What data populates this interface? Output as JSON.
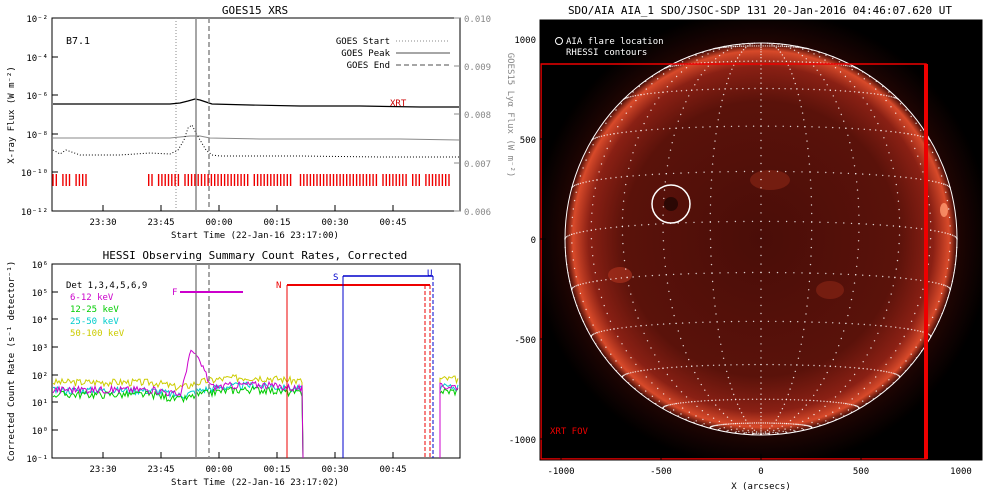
{
  "goes": {
    "title": "GOES15 XRS",
    "class_label": "B7.1",
    "ylabel_left": "X-ray Flux (W m⁻²)",
    "ylabel_right": "GOES15 Lyα Flux (W m⁻²)",
    "xlabel": "Start Time (22-Jan-16 23:17:00)",
    "xrt_label": "XRT",
    "legend": [
      "GOES Start",
      "GOES Peak",
      "GOES End"
    ],
    "y_ticks": [
      "10⁻²",
      "10⁻⁴",
      "10⁻⁶",
      "10⁻⁸",
      "10⁻¹⁰",
      "10⁻¹²"
    ],
    "right_ticks": [
      "0.010",
      "0.009",
      "0.008",
      "0.007",
      "0.006"
    ],
    "x_ticks": [
      "23:30",
      "23:45",
      "00:00",
      "00:15",
      "00:30",
      "00:45"
    ]
  },
  "hessi": {
    "title": "HESSI Observing Summary Count Rates, Corrected",
    "xlabel": "Start Time (22-Jan-16 23:17:02)",
    "ylabel": "Corrected Count Rate (s⁻¹ detector⁻¹)",
    "detector_label": "Det 1,3,4,5,6,9",
    "y_ticks": [
      "10⁶",
      "10⁵",
      "10⁴",
      "10³",
      "10²",
      "10¹",
      "10⁰",
      "10⁻¹"
    ],
    "x_ticks": [
      "23:30",
      "23:45",
      "00:00",
      "00:15",
      "00:30",
      "00:45"
    ],
    "bands": [
      {
        "name": "6-12 keV",
        "color": "#cc00cc"
      },
      {
        "name": "12-25 keV",
        "color": "#00cc00"
      },
      {
        "name": "25-50 keV",
        "color": "#00cccc"
      },
      {
        "name": "50-100 keV",
        "color": "#cccc00"
      }
    ],
    "flags": {
      "F": "F",
      "N": "N",
      "S": "S",
      "U": "U"
    }
  },
  "aia": {
    "title": "SDO/AIA AIA_1 SDO/JSOC-SDP 131 20-Jan-2016 04:46:07.620 UT",
    "legend_flare": "AIA flare location",
    "legend_rhessi": "RHESSI contours",
    "fov_label": "XRT FOV",
    "xlabel": "X (arcsecs)",
    "x_ticks": [
      "-1000",
      "-500",
      "0",
      "500",
      "1000"
    ],
    "y_ticks": [
      "1000",
      "500",
      "0",
      "-500",
      "-1000"
    ]
  },
  "chart_data": [
    {
      "type": "line",
      "title": "GOES15 XRS",
      "xlabel": "Start Time (22-Jan-16 23:17:00)",
      "ylabel": "X-ray Flux (W m⁻²)",
      "y_scale": "log",
      "ylim": [
        1e-12,
        0.01
      ],
      "series": [
        {
          "name": "",
          "x": [
            "23:17",
            "23:45",
            "23:50",
            "23:55",
            "00:15",
            "00:45",
            "00:53"
          ],
          "values": [
            5e-07,
            4.5e-07,
            7e-07,
            5e-07,
            3.5e-07,
            3.2e-07,
            3e-07
          ]
        },
        {
          "name": "",
          "x": [
            "23:17",
            "23:45",
            "23:50",
            "23:55",
            "00:15",
            "00:45",
            "00:53"
          ],
          "values": [
            8e-09,
            8e-09,
            9e-09,
            8e-09,
            7e-09,
            7e-09,
            7e-09
          ]
        }
      ],
      "vlines": {
        "GOES Start": "23:49",
        "GOES Peak": "23:52",
        "GOES End": "23:55"
      },
      "grid": false,
      "legend": "top-right"
    },
    {
      "type": "line",
      "title": "HESSI Observing Summary Count Rates, Corrected",
      "xlabel": "Start Time (22-Jan-16 23:17:02)",
      "ylabel": "Corrected Count Rate (s⁻¹ detector⁻¹)",
      "y_scale": "log",
      "ylim": [
        0.1,
        1000000.0
      ],
      "series": [
        {
          "name": "6-12 keV",
          "x": [
            "23:17",
            "23:45",
            "23:49",
            "23:52",
            "00:05",
            "00:18"
          ],
          "values": [
            30,
            30,
            700,
            90,
            40,
            35
          ]
        },
        {
          "name": "12-25 keV",
          "x": [
            "23:17",
            "23:45",
            "23:49",
            "23:52",
            "00:05",
            "00:18"
          ],
          "values": [
            20,
            18,
            30,
            30,
            30,
            25
          ]
        },
        {
          "name": "25-50 keV",
          "x": [
            "23:17",
            "23:45",
            "23:49",
            "23:52",
            "00:05",
            "00:18"
          ],
          "values": [
            30,
            25,
            40,
            40,
            45,
            35
          ]
        },
        {
          "name": "50-100 keV",
          "x": [
            "23:17",
            "23:45",
            "23:49",
            "23:52",
            "00:05",
            "00:18"
          ],
          "values": [
            60,
            40,
            60,
            60,
            70,
            55
          ]
        }
      ],
      "legend": "top-left"
    }
  ]
}
